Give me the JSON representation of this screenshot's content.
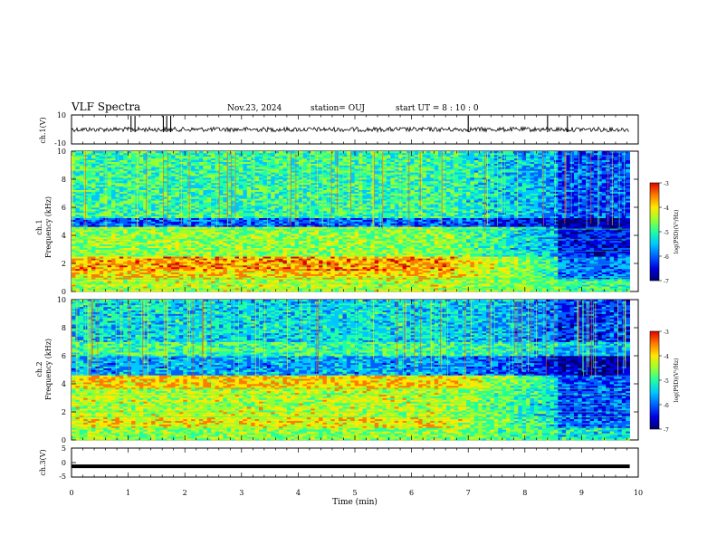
{
  "header": {
    "title": "VLF Spectra",
    "date": "Nov.23, 2024",
    "station": "station= OUJ",
    "start": "start  UT =   8  : 10 : 0"
  },
  "colors": {
    "spectrogram_scale": [
      "#00006e",
      "#0000e0",
      "#0060ff",
      "#00c8ff",
      "#22ffa0",
      "#9aff30",
      "#ffe800",
      "#ff7a00",
      "#e00000"
    ],
    "waveform": "#000000"
  },
  "chart_data": [
    {
      "type": "line",
      "name": "ch1-waveform",
      "ylabel": "ch.1(V)",
      "ylim": [
        -10,
        10
      ],
      "yticks": [
        "10",
        "-10"
      ],
      "baseline_value": 0,
      "spike_times_min": [
        1.05,
        1.12,
        1.62,
        1.68,
        1.75,
        7.0,
        8.4,
        8.75
      ],
      "xlim": [
        0,
        10
      ]
    },
    {
      "type": "heatmap",
      "name": "ch1-spectrogram",
      "ylabel": "ch.1\nFrequency  (kHz)",
      "ylim": [
        0,
        10
      ],
      "yticks": [
        "0",
        "2",
        "4",
        "6",
        "8",
        "10"
      ],
      "xlim": [
        0,
        9.85
      ],
      "colorbar": {
        "label": "log(PSD)(V²/Hz)",
        "range": [
          -7,
          -3
        ],
        "ticks": [
          "-3",
          "-4",
          "-5",
          "-6",
          "-7"
        ]
      },
      "bands_khz": [
        {
          "f0": 0.0,
          "f1": 0.8,
          "level_early": -4.4,
          "level_late": -5.0
        },
        {
          "f0": 0.8,
          "f1": 1.5,
          "level_early": -4.0,
          "level_late": -5.8
        },
        {
          "f0": 1.5,
          "f1": 2.4,
          "level_early": -3.8,
          "level_late": -5.8
        },
        {
          "f0": 2.4,
          "f1": 4.6,
          "level_early": -4.6,
          "level_late": -6.2
        },
        {
          "f0": 4.6,
          "f1": 5.2,
          "level_early": -5.9,
          "level_late": -6.7
        },
        {
          "f0": 5.2,
          "f1": 10.0,
          "level_early": -5.0,
          "level_late": -6.0
        }
      ]
    },
    {
      "type": "heatmap",
      "name": "ch2-spectrogram",
      "ylabel": "ch.2\nFrequency  (kHz)",
      "ylim": [
        0,
        10
      ],
      "yticks": [
        "0",
        "2",
        "4",
        "6",
        "8",
        "10"
      ],
      "xlim": [
        0,
        9.85
      ],
      "colorbar": {
        "label": "log(PSD)(V²/Hz)",
        "range": [
          -7,
          -3
        ],
        "ticks": [
          "-3",
          "-4",
          "-5",
          "-6",
          "-7"
        ]
      },
      "bands_khz": [
        {
          "f0": 0.0,
          "f1": 0.8,
          "level_early": -4.6,
          "level_late": -5.2
        },
        {
          "f0": 0.8,
          "f1": 1.6,
          "level_early": -4.2,
          "level_late": -5.9
        },
        {
          "f0": 1.6,
          "f1": 3.6,
          "level_early": -4.4,
          "level_late": -6.0
        },
        {
          "f0": 3.6,
          "f1": 4.6,
          "level_early": -4.0,
          "level_late": -6.0
        },
        {
          "f0": 4.6,
          "f1": 6.0,
          "level_early": -5.6,
          "level_late": -6.6
        },
        {
          "f0": 6.0,
          "f1": 7.0,
          "level_early": -4.9,
          "level_late": -5.5
        },
        {
          "f0": 7.0,
          "f1": 10.0,
          "level_early": -5.3,
          "level_late": -6.1
        }
      ]
    },
    {
      "type": "line",
      "name": "ch3-waveform",
      "ylabel": "ch.3(V)",
      "ylim": [
        -5,
        5
      ],
      "yticks": [
        "5",
        "0",
        "-5"
      ],
      "baseline_value": -1.3,
      "xlim": [
        0,
        10
      ]
    }
  ],
  "x_axis": {
    "label": "Time  (min)",
    "ticks": [
      "0",
      "1",
      "2",
      "3",
      "4",
      "5",
      "6",
      "7",
      "8",
      "9",
      "10"
    ],
    "range": [
      0,
      10
    ]
  }
}
